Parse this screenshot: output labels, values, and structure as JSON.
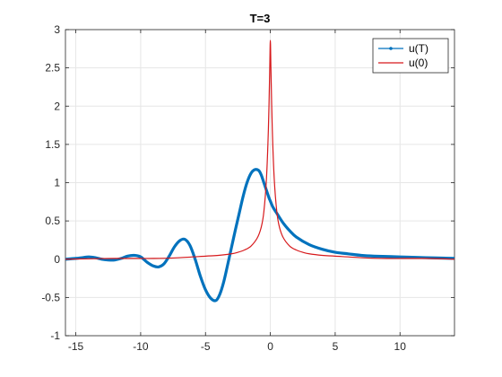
{
  "chart_data": {
    "type": "line",
    "title": "T=3",
    "xlabel": "",
    "ylabel": "",
    "xlim": [
      -15.8,
      14.2
    ],
    "ylim": [
      -1,
      3
    ],
    "xticks": [
      -15,
      -10,
      -5,
      0,
      5,
      10
    ],
    "yticks": [
      -1,
      -0.5,
      0,
      0.5,
      1,
      1.5,
      2,
      2.5,
      3
    ],
    "xtick_labels": [
      "-15",
      "-10",
      "-5",
      "0",
      "5",
      "10"
    ],
    "ytick_labels": [
      "-1",
      "-0.5",
      "0",
      "0.5",
      "1",
      "1.5",
      "2",
      "2.5",
      "3"
    ],
    "grid": true,
    "legend_position": "top-right",
    "series": [
      {
        "name": "u(T)",
        "color": "#0072BD",
        "x": [
          -15.8,
          -15.0,
          -14.5,
          -14.0,
          -13.5,
          -13.0,
          -12.5,
          -12.0,
          -11.5,
          -11.0,
          -10.5,
          -10.0,
          -9.5,
          -9.0,
          -8.6,
          -8.2,
          -7.8,
          -7.4,
          -7.0,
          -6.6,
          -6.2,
          -5.8,
          -5.4,
          -5.0,
          -4.6,
          -4.2,
          -3.9,
          -3.6,
          -3.3,
          -3.0,
          -2.7,
          -2.4,
          -2.1,
          -1.8,
          -1.5,
          -1.2,
          -0.9,
          -0.7,
          -0.5,
          -0.3,
          -0.1,
          0.0,
          0.2,
          0.5,
          1.0,
          1.5,
          2.0,
          3.0,
          4.0,
          5.0,
          6.0,
          7.0,
          8.0,
          10.0,
          12.0,
          14.2
        ],
        "values": [
          0.0,
          0.01,
          0.02,
          0.03,
          0.02,
          0.0,
          -0.01,
          -0.01,
          0.01,
          0.04,
          0.05,
          0.03,
          -0.04,
          -0.09,
          -0.1,
          -0.06,
          0.04,
          0.16,
          0.24,
          0.26,
          0.18,
          0.0,
          -0.22,
          -0.4,
          -0.51,
          -0.54,
          -0.46,
          -0.3,
          -0.08,
          0.15,
          0.38,
          0.6,
          0.82,
          1.0,
          1.12,
          1.17,
          1.16,
          1.1,
          1.0,
          0.9,
          0.8,
          0.76,
          0.68,
          0.6,
          0.47,
          0.37,
          0.29,
          0.19,
          0.13,
          0.09,
          0.07,
          0.05,
          0.04,
          0.03,
          0.02,
          0.01
        ]
      },
      {
        "name": "u(0)",
        "color": "#D7191C",
        "x": [
          -15.8,
          -12.0,
          -9.0,
          -7.0,
          -5.0,
          -4.0,
          -3.0,
          -2.5,
          -2.0,
          -1.5,
          -1.0,
          -0.7,
          -0.5,
          -0.3,
          -0.15,
          -0.05,
          0.0,
          0.05,
          0.15,
          0.3,
          0.5,
          0.7,
          1.0,
          1.5,
          2.0,
          2.5,
          3.0,
          4.0,
          5.0,
          7.0,
          9.0,
          12.0,
          14.2
        ],
        "values": [
          0.0,
          0.01,
          0.01,
          0.02,
          0.04,
          0.05,
          0.07,
          0.09,
          0.12,
          0.17,
          0.28,
          0.42,
          0.62,
          1.05,
          1.7,
          2.45,
          2.86,
          2.45,
          1.7,
          1.05,
          0.62,
          0.42,
          0.28,
          0.17,
          0.12,
          0.09,
          0.07,
          0.05,
          0.04,
          0.02,
          0.01,
          0.01,
          0.0
        ]
      }
    ]
  }
}
